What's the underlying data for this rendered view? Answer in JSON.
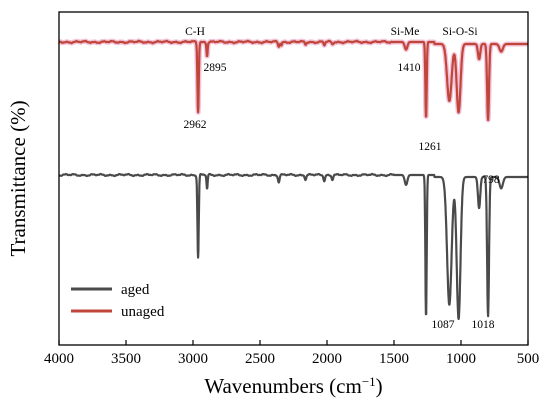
{
  "chart_data": {
    "type": "line",
    "xlabel": "Wavenumbers (cm",
    "xlabel_sup": "−1",
    "xlabel_close": ")",
    "ylabel": "Transmittance (%)",
    "xlim": [
      4000,
      500
    ],
    "x_reversed": true,
    "xticks": [
      "4000",
      "3500",
      "3000",
      "2500",
      "2000",
      "1500",
      "1000",
      "500"
    ],
    "xtick_values": [
      4000,
      3500,
      3000,
      2500,
      2000,
      1500,
      1000,
      500
    ],
    "yticks_shown": false,
    "grid": false,
    "legend": {
      "position": "bottom-left",
      "entries": [
        {
          "name": "aged",
          "color": "#4a4a4a"
        },
        {
          "name": "unaged",
          "color": "#c0463a"
        }
      ]
    },
    "series": [
      {
        "name": "unaged",
        "color": "#c0463a",
        "halo": "#f0b8d2",
        "baseline_y": 0.975,
        "bands": [
          {
            "x": 2962,
            "depth": 0.92,
            "width": 7
          },
          {
            "x": 2895,
            "depth": 0.18,
            "width": 6
          },
          {
            "x": 2360,
            "depth": 0.06,
            "width": 8
          },
          {
            "x": 2340,
            "depth": 0.04,
            "width": 6
          },
          {
            "x": 2160,
            "depth": 0.03,
            "width": 8
          },
          {
            "x": 2020,
            "depth": 0.04,
            "width": 8
          },
          {
            "x": 1960,
            "depth": 0.03,
            "width": 8
          },
          {
            "x": 1410,
            "depth": 0.1,
            "width": 14
          },
          {
            "x": 1261,
            "depth": 1.0,
            "width": 7
          },
          {
            "x": 1087,
            "depth": 0.75,
            "width": 24
          },
          {
            "x": 1018,
            "depth": 0.9,
            "width": 20
          },
          {
            "x": 865,
            "depth": 0.2,
            "width": 12
          },
          {
            "x": 798,
            "depth": 1.0,
            "width": 10
          },
          {
            "x": 700,
            "depth": 0.1,
            "width": 18
          }
        ],
        "depth_scale": 0.93
      },
      {
        "name": "aged",
        "color": "#4a4a4a",
        "baseline_y": 0.58,
        "bands": [
          {
            "x": 2962,
            "depth": 0.58,
            "width": 7
          },
          {
            "x": 2895,
            "depth": 0.1,
            "width": 6
          },
          {
            "x": 2360,
            "depth": 0.05,
            "width": 8
          },
          {
            "x": 2160,
            "depth": 0.03,
            "width": 8
          },
          {
            "x": 2020,
            "depth": 0.04,
            "width": 8
          },
          {
            "x": 1960,
            "depth": 0.03,
            "width": 8
          },
          {
            "x": 1410,
            "depth": 0.07,
            "width": 14
          },
          {
            "x": 1261,
            "depth": 1.0,
            "width": 7
          },
          {
            "x": 1087,
            "depth": 0.9,
            "width": 24
          },
          {
            "x": 1018,
            "depth": 1.0,
            "width": 20
          },
          {
            "x": 865,
            "depth": 0.22,
            "width": 12
          },
          {
            "x": 798,
            "depth": 0.98,
            "width": 10
          },
          {
            "x": 700,
            "depth": 0.08,
            "width": 18
          }
        ],
        "depth_scale": 1.0
      }
    ],
    "annotations": [
      {
        "text": "C-H",
        "x": 2920,
        "series": "unaged",
        "placement": "above"
      },
      {
        "text": "Si-Me",
        "x": 1390,
        "series": "unaged",
        "placement": "above"
      },
      {
        "text": "Si-O-Si",
        "x": 1040,
        "series": "unaged",
        "placement": "above"
      },
      {
        "text": "2895",
        "x": 2830,
        "series": "unaged",
        "placement": "near"
      },
      {
        "text": "2962",
        "x": 2962,
        "series": "unaged",
        "placement": "below-peak"
      },
      {
        "text": "1410",
        "x": 1410,
        "series": "unaged",
        "placement": "below-near"
      },
      {
        "text": "1261",
        "x": 1215,
        "series": "unaged",
        "placement": "below-peak"
      },
      {
        "text": "798",
        "x": 765,
        "series": "unaged",
        "placement": "below-peak"
      },
      {
        "text": "1087",
        "x": 1110,
        "series": "aged",
        "placement": "below-peak"
      },
      {
        "text": "1018",
        "x": 1000,
        "series": "aged",
        "placement": "below-peak"
      }
    ]
  }
}
